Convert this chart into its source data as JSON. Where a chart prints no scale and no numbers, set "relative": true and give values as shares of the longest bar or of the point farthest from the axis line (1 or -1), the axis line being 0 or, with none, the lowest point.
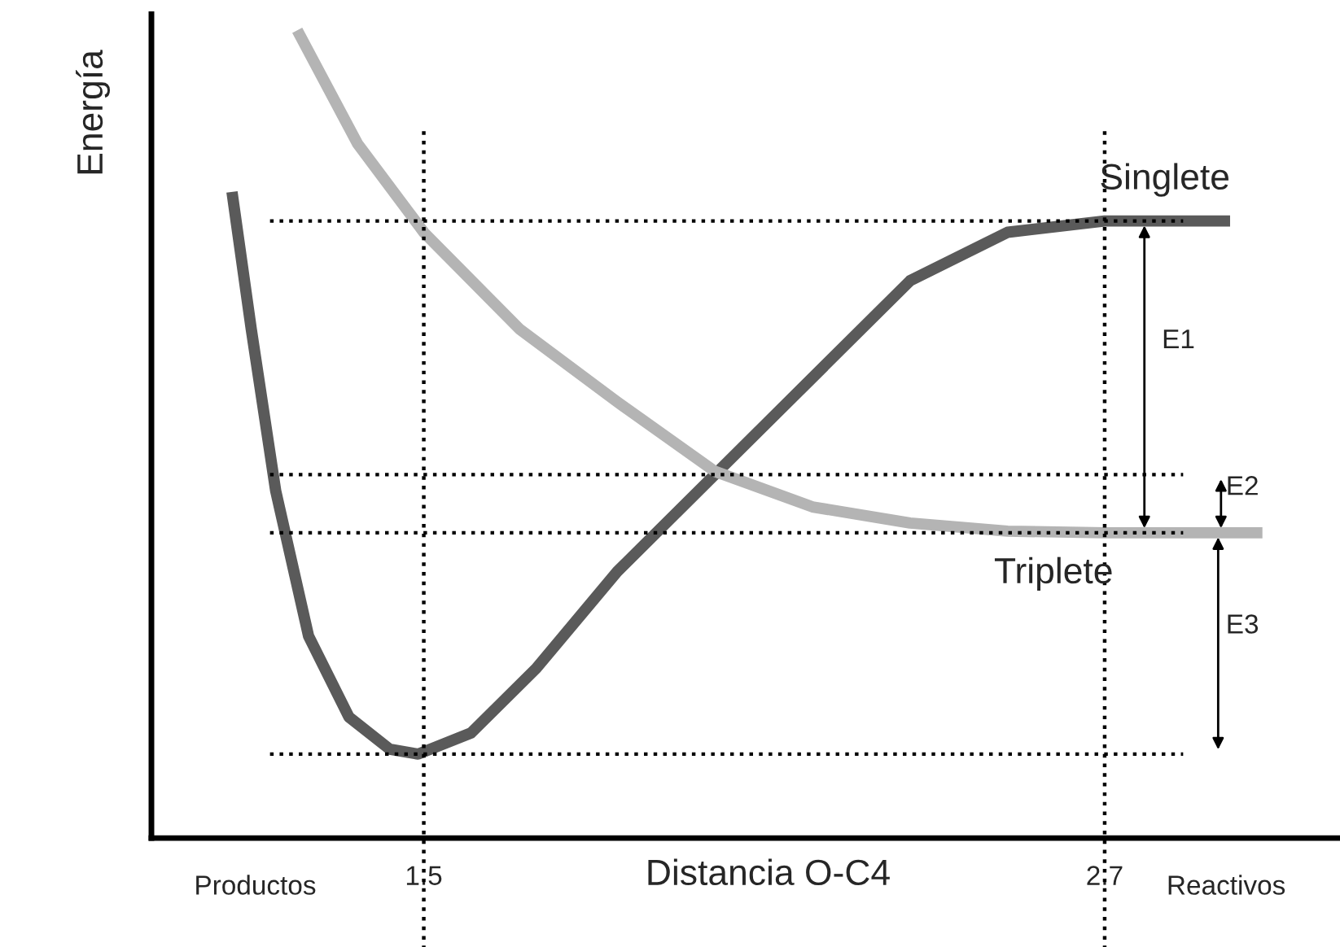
{
  "chart_data": {
    "type": "line",
    "relative": true,
    "xlabel": "Distancia O-C4",
    "ylabel": "Energía",
    "xlim": [
      1.02,
      3.11
    ],
    "xticks": [
      1.5,
      2.7
    ],
    "series": [
      {
        "name": "Singlete",
        "color": "#5a5a5a",
        "x": [
          1.162,
          1.196,
          1.239,
          1.297,
          1.368,
          1.44,
          1.49,
          1.583,
          1.698,
          1.841,
          2.013,
          2.185,
          2.357,
          2.529,
          2.7,
          2.921
        ],
        "values": [
          0.8,
          0.63,
          0.43,
          0.25,
          0.15,
          0.11,
          0.104,
          0.13,
          0.21,
          0.33,
          0.45,
          0.57,
          0.69,
          0.75,
          0.764,
          0.764
        ]
      },
      {
        "name": "Triplete",
        "color": "#b4b4b4",
        "x": [
          1.277,
          1.383,
          1.5,
          1.669,
          1.841,
          2.013,
          2.185,
          2.357,
          2.529,
          2.7,
          2.978
        ],
        "values": [
          1.0,
          0.86,
          0.75,
          0.63,
          0.54,
          0.454,
          0.41,
          0.39,
          0.38,
          0.378,
          0.378
        ]
      }
    ],
    "ref_lines": [
      {
        "axis": "y",
        "value": 0.764,
        "line_style": "dotted",
        "color": "#000000"
      },
      {
        "axis": "y",
        "value": 0.45,
        "line_style": "dotted",
        "color": "#000000"
      },
      {
        "axis": "y",
        "value": 0.378,
        "line_style": "dotted",
        "color": "#000000"
      },
      {
        "axis": "y",
        "value": 0.104,
        "line_style": "dotted",
        "color": "#000000"
      },
      {
        "axis": "x",
        "value": 1.5,
        "line_style": "dotted",
        "color": "#000000"
      },
      {
        "axis": "x",
        "value": 2.7,
        "line_style": "dotted",
        "color": "#000000"
      }
    ],
    "annotations": [
      "E1",
      "E2",
      "E3",
      "Productos",
      "Reactivos"
    ],
    "grid": false,
    "legend": false,
    "marker": "none",
    "line_style": "solid"
  }
}
